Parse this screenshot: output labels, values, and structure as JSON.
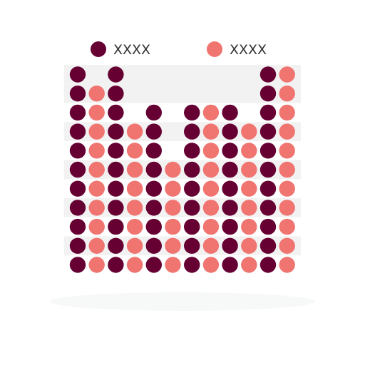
{
  "chart_data": {
    "type": "bar",
    "subtype": "dot-column",
    "categories": [
      "",
      "",
      "",
      "",
      "",
      ""
    ],
    "series": [
      {
        "name": "XXXX",
        "values": [
          11,
          11,
          9,
          9,
          9,
          11
        ]
      },
      {
        "name": "XXXX",
        "values": [
          10,
          8,
          6,
          9,
          8,
          11
        ]
      }
    ],
    "ylim": [
      0,
      11
    ],
    "grid": "alternating-bands",
    "legend_position": "top",
    "colors": {
      "series": [
        "#660033",
        "#f07470"
      ],
      "band": "#f2f2f2",
      "shadow": "#f7f8f8"
    }
  }
}
